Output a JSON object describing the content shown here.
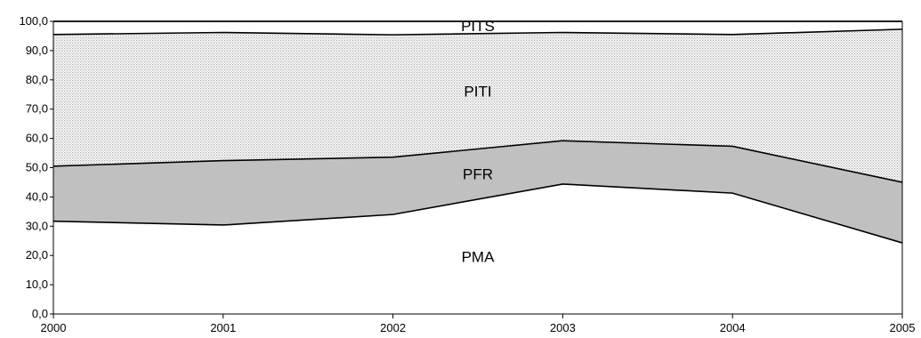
{
  "chart_data": {
    "type": "area",
    "stacked": true,
    "x": [
      "2000",
      "2001",
      "2002",
      "2003",
      "2004",
      "2005"
    ],
    "ylim": [
      0,
      100
    ],
    "yticks": [
      "0,0",
      "10,0",
      "20,0",
      "30,0",
      "40,0",
      "50,0",
      "60,0",
      "70,0",
      "80,0",
      "90,0",
      "100,0"
    ],
    "grid": false,
    "series": [
      {
        "name": "PMA",
        "values": [
          31.7,
          30.4,
          34.0,
          44.4,
          41.3,
          24.3
        ],
        "fill": "#ffffff"
      },
      {
        "name": "PFR",
        "values": [
          18.8,
          22.0,
          19.6,
          14.8,
          16.0,
          20.7
        ],
        "fill": "#c0c0c0"
      },
      {
        "name": "PITI",
        "values": [
          45.0,
          43.8,
          41.8,
          37.0,
          38.2,
          52.3
        ],
        "fill": "#dcdcdc"
      },
      {
        "name": "PITS",
        "values": [
          4.5,
          3.8,
          4.6,
          3.8,
          4.5,
          2.7
        ],
        "fill": "#ffffff"
      }
    ]
  }
}
